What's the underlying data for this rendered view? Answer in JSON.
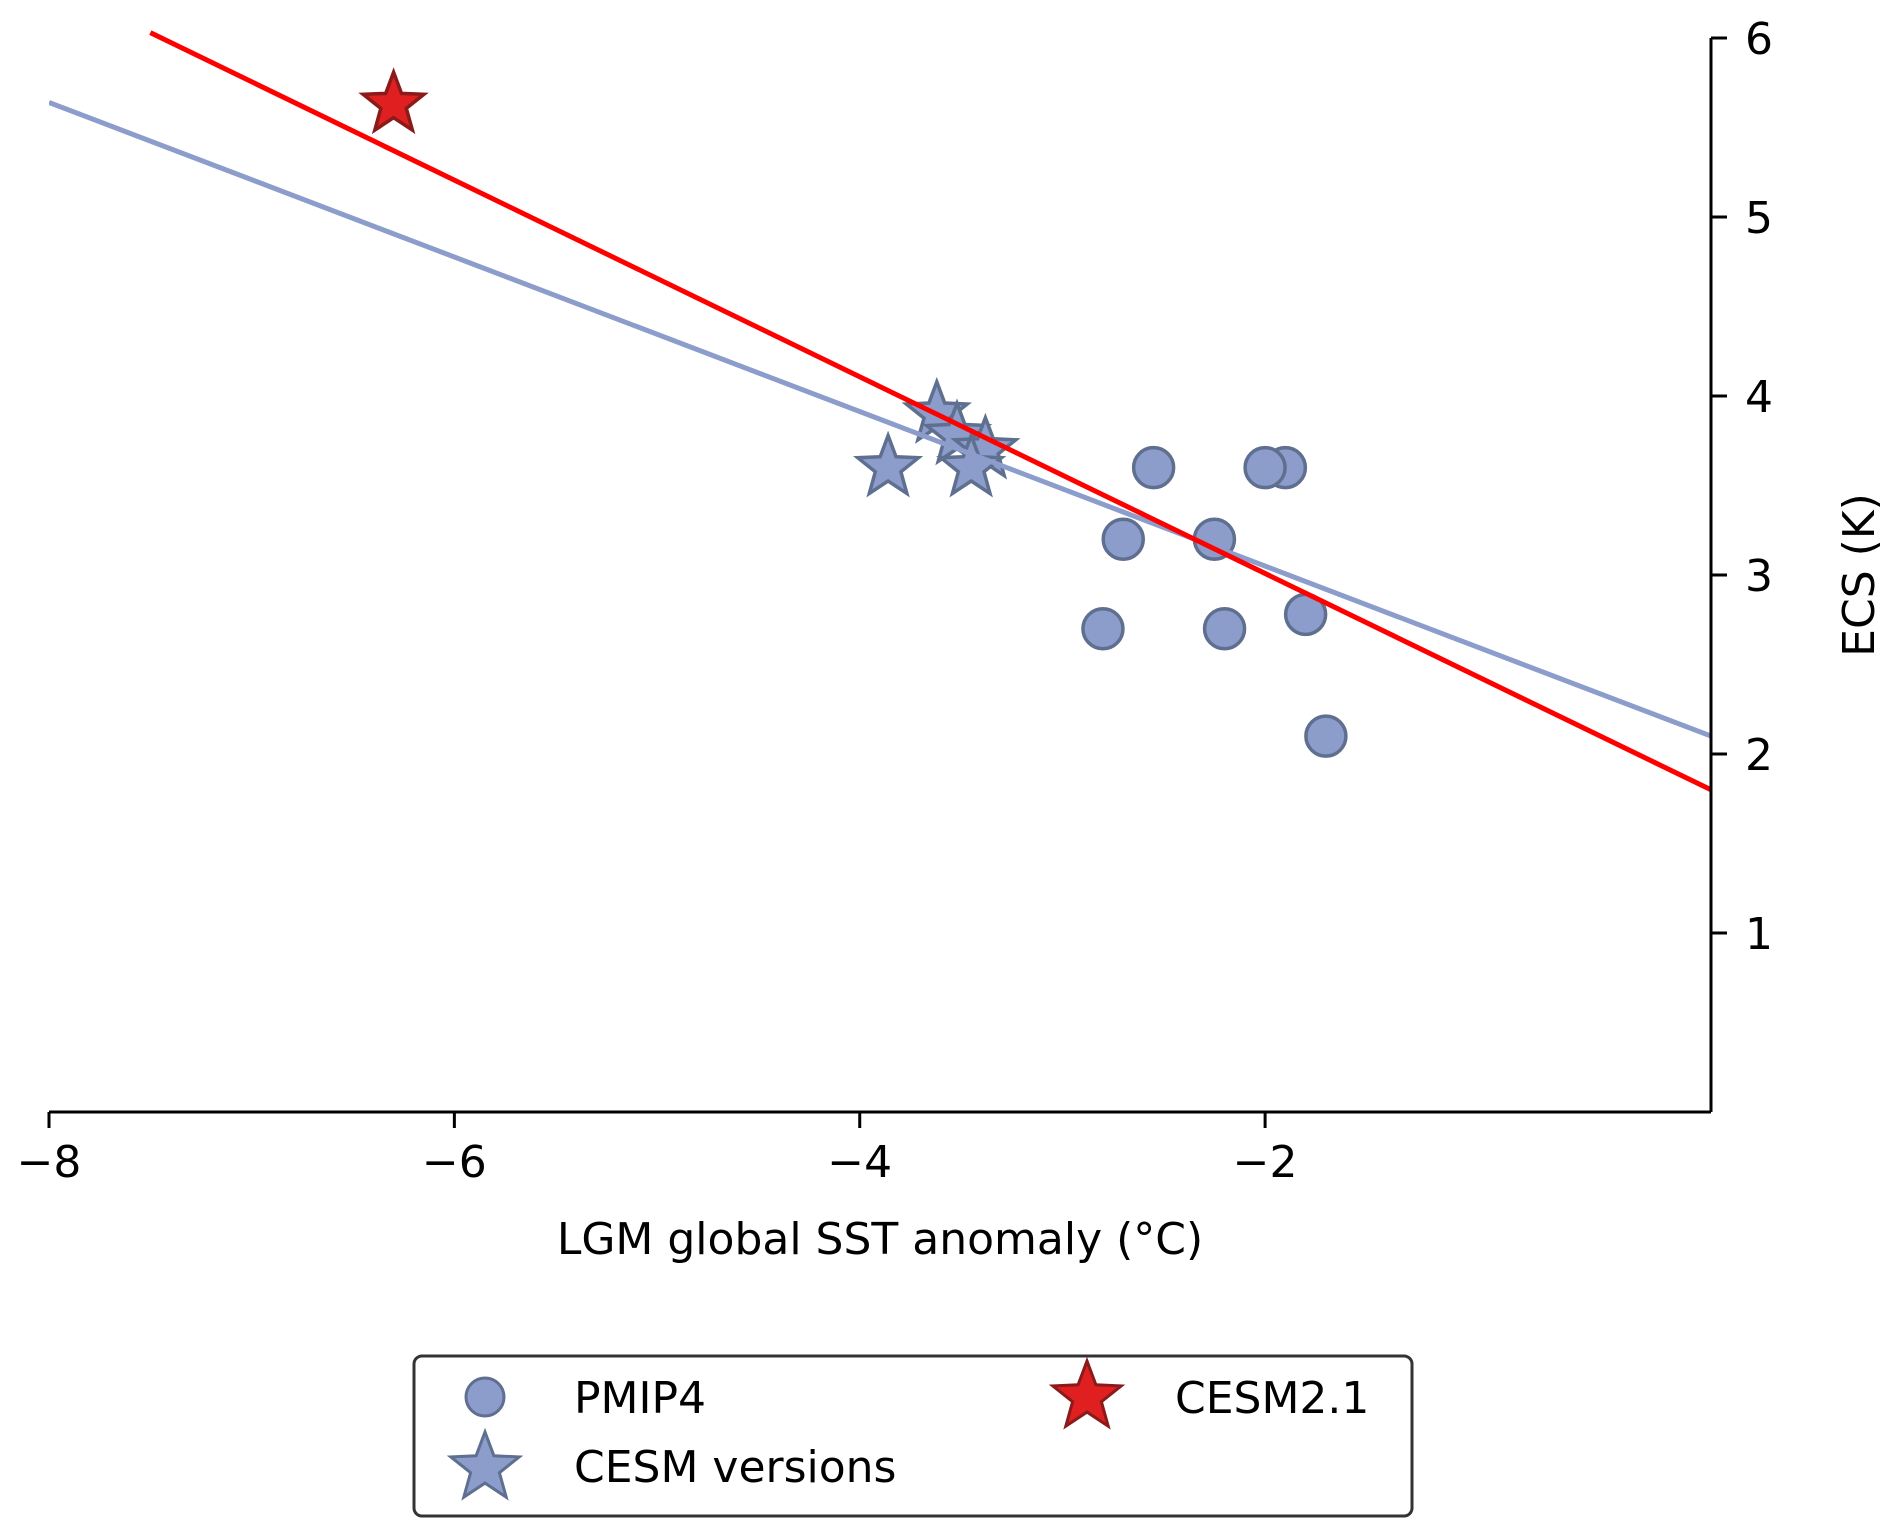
{
  "chart_data": {
    "type": "scatter",
    "xlabel": "LGM global SST anomaly (°C)",
    "ylabel": "ECS (K)",
    "xlim": [
      -8,
      0.2
    ],
    "ylim": [
      0,
      6
    ],
    "x_ticks": [
      -8,
      -6,
      -4,
      -2
    ],
    "x_tick_labels": [
      "−8",
      "−6",
      "−4",
      "−2"
    ],
    "y_ticks": [
      1,
      2,
      3,
      4,
      5,
      6
    ],
    "y_tick_labels": [
      "1",
      "2",
      "3",
      "4",
      "5",
      "6"
    ],
    "y_axis_position": "right",
    "grid": false,
    "legend_position": "below-center",
    "series": [
      {
        "name": "PMIP4",
        "marker": "circle",
        "color": "#8c9dcc",
        "edge_color": "#5f6f8f",
        "points": [
          {
            "x": -2.55,
            "y": 3.6
          },
          {
            "x": -2.7,
            "y": 3.2
          },
          {
            "x": -2.8,
            "y": 2.7
          },
          {
            "x": -2.25,
            "y": 3.2
          },
          {
            "x": -2.2,
            "y": 2.7
          },
          {
            "x": -1.9,
            "y": 3.6
          },
          {
            "x": -2.0,
            "y": 3.6
          },
          {
            "x": -1.8,
            "y": 2.78
          },
          {
            "x": -1.7,
            "y": 2.1
          }
        ]
      },
      {
        "name": "CESM versions",
        "marker": "star",
        "color": "#8c9dcc",
        "edge_color": "#5f6f8f",
        "points": [
          {
            "x": -3.62,
            "y": 3.9
          },
          {
            "x": -3.52,
            "y": 3.78
          },
          {
            "x": -3.38,
            "y": 3.7
          },
          {
            "x": -3.86,
            "y": 3.6
          },
          {
            "x": -3.45,
            "y": 3.6
          }
        ]
      },
      {
        "name": "CESM2.1",
        "marker": "star",
        "color": "#e02020",
        "edge_color": "#8b1a1a",
        "points": [
          {
            "x": -6.3,
            "y": 5.63
          }
        ]
      }
    ],
    "fit_lines": [
      {
        "color": "#8c9dcc",
        "x": [
          -8.0,
          0.2
        ],
        "y": [
          5.64,
          2.1
        ]
      },
      {
        "color": "#ff0000",
        "x": [
          -7.5,
          0.2
        ],
        "y": [
          6.03,
          1.8
        ]
      }
    ]
  }
}
